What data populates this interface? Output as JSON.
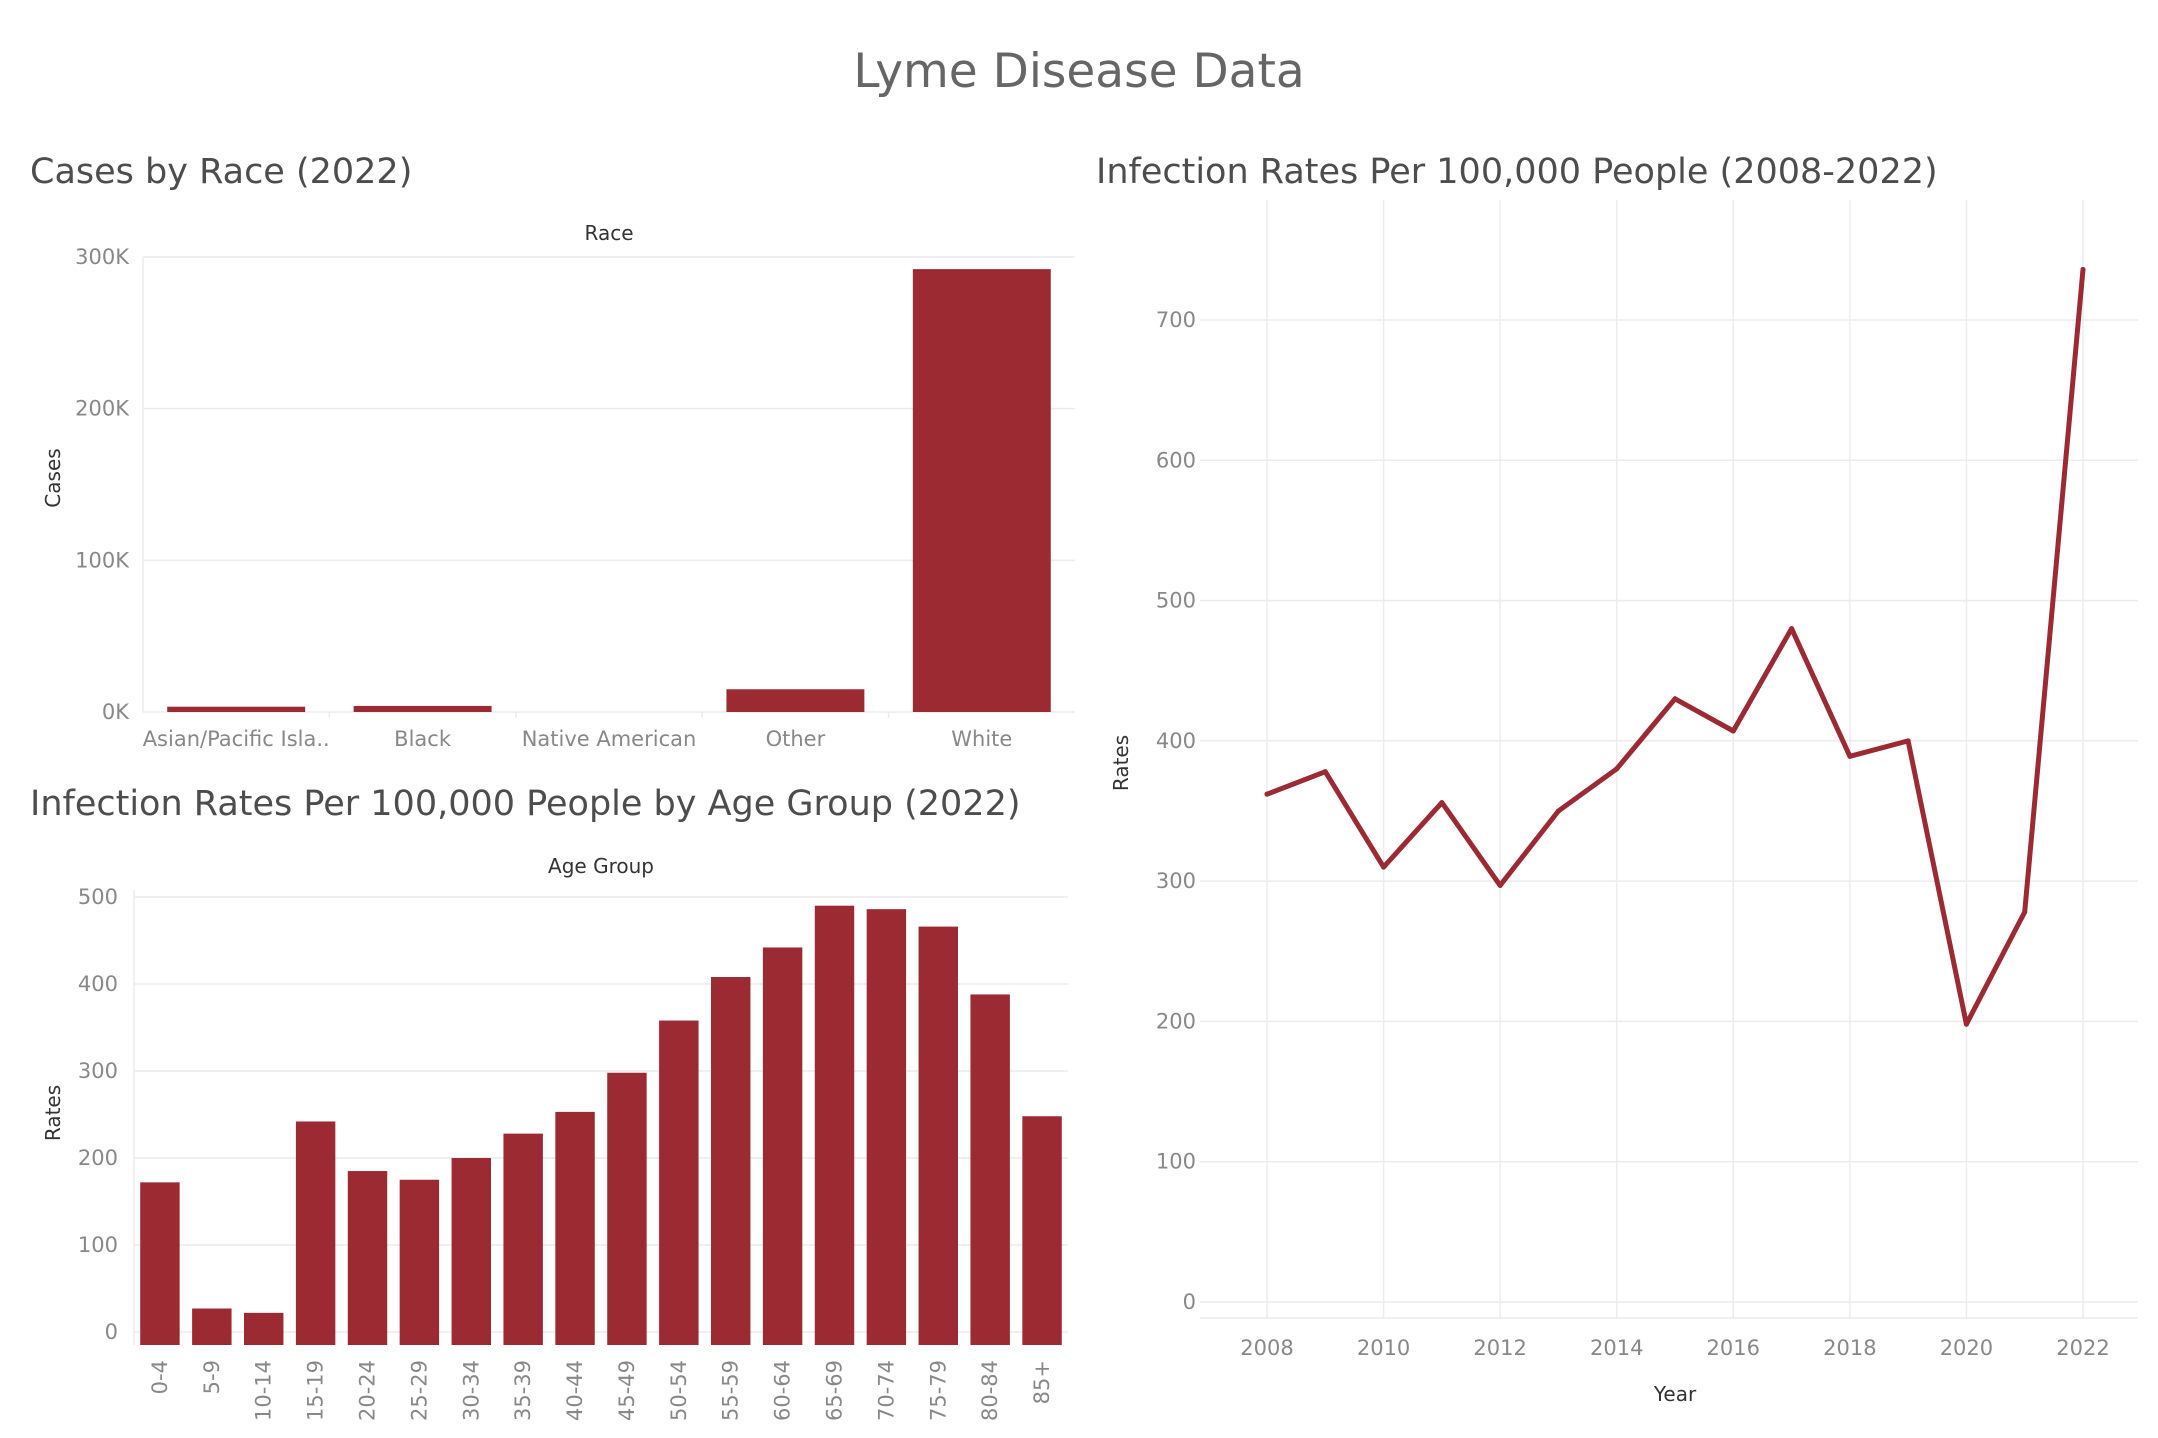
{
  "title": "Lyme Disease Data",
  "chart_data": [
    {
      "type": "bar",
      "title": "Cases by Race (2022)",
      "header_label": "Race",
      "ylabel": "Cases",
      "categories": [
        "Asian/Pacific Isla..",
        "Black",
        "Native American",
        "Other",
        "White"
      ],
      "values": [
        3500,
        4000,
        0,
        15000,
        292000
      ],
      "ylim": [
        0,
        300000
      ],
      "yticks": [
        0,
        100000,
        200000,
        300000
      ],
      "ytick_labels": [
        "0K",
        "100K",
        "200K",
        "300K"
      ],
      "color": "#9b2a33"
    },
    {
      "type": "bar",
      "title": "Infection Rates Per 100,000 People by Age Group (2022)",
      "header_label": "Age Group",
      "ylabel": "Rates",
      "categories": [
        "0-4",
        "5-9",
        "10-14",
        "15-19",
        "20-24",
        "25-29",
        "30-34",
        "35-39",
        "40-44",
        "45-49",
        "50-54",
        "55-59",
        "60-64",
        "65-69",
        "70-74",
        "75-79",
        "80-84",
        "85+"
      ],
      "values": [
        172,
        27,
        22,
        242,
        185,
        175,
        200,
        228,
        253,
        298,
        358,
        408,
        442,
        490,
        486,
        466,
        388,
        248
      ],
      "ylim": [
        0,
        500
      ],
      "yticks": [
        0,
        100,
        200,
        300,
        400,
        500
      ],
      "color": "#9b2a33"
    },
    {
      "type": "line",
      "title": "Infection Rates Per 100,000 People (2008-2022)",
      "xlabel": "Year",
      "ylabel": "Rates",
      "x": [
        2008,
        2009,
        2010,
        2011,
        2012,
        2013,
        2014,
        2015,
        2016,
        2017,
        2018,
        2019,
        2020,
        2021,
        2022
      ],
      "y": [
        362,
        378,
        310,
        356,
        297,
        350,
        380,
        430,
        407,
        480,
        389,
        400,
        198,
        278,
        736
      ],
      "xticks": [
        2008,
        2010,
        2012,
        2014,
        2016,
        2018,
        2020,
        2022
      ],
      "yticks": [
        0,
        100,
        200,
        300,
        400,
        500,
        600,
        700
      ],
      "ylim": [
        0,
        760
      ],
      "color": "#9b2a33"
    }
  ]
}
